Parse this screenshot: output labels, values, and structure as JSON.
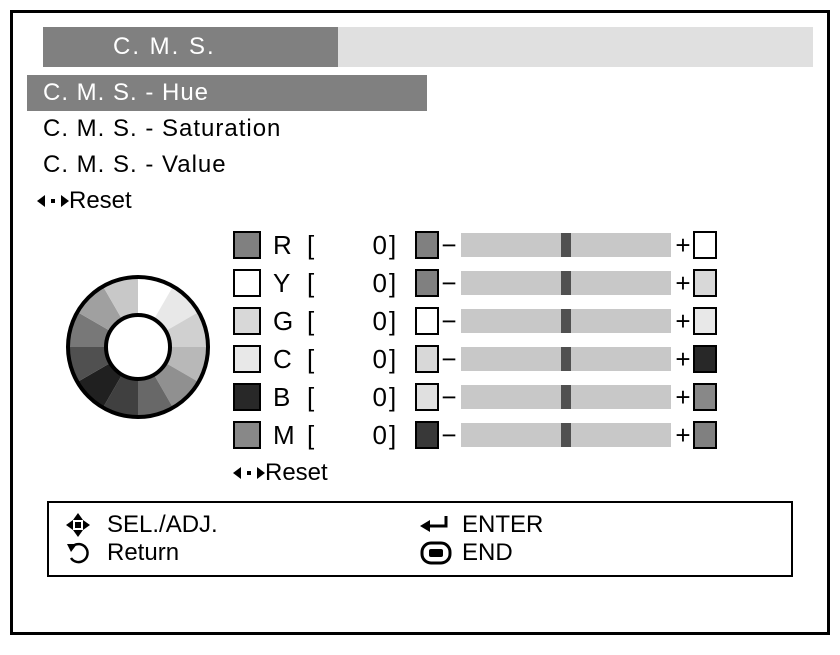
{
  "header": {
    "title": "C. M. S."
  },
  "menu": {
    "items": [
      {
        "label": "C. M. S. - Hue",
        "selected": true
      },
      {
        "label": "C. M. S. - Saturation",
        "selected": false
      },
      {
        "label": "C. M. S. - Value",
        "selected": false
      }
    ],
    "reset_label": "Reset"
  },
  "wheel": {
    "segments": [
      "#ffffff",
      "#e8e8e8",
      "#d0d0d0",
      "#b8b8b8",
      "#909090",
      "#686868",
      "#404040",
      "#202020",
      "#505050",
      "#787878",
      "#a0a0a0",
      "#c8c8c8"
    ],
    "outer_radius": 70,
    "inner_radius": 32,
    "stroke": "#000"
  },
  "rows": [
    {
      "label": "R",
      "value": "0",
      "swatch": "#808080",
      "minus_swatch": "#808080",
      "plus_swatch": "#ffffff",
      "pos": 0.5
    },
    {
      "label": "Y",
      "value": "0",
      "swatch": "#ffffff",
      "minus_swatch": "#808080",
      "plus_swatch": "#d8d8d8",
      "pos": 0.5
    },
    {
      "label": "G",
      "value": "0",
      "swatch": "#d8d8d8",
      "minus_swatch": "#ffffff",
      "plus_swatch": "#e8e8e8",
      "pos": 0.5
    },
    {
      "label": "C",
      "value": "0",
      "swatch": "#e8e8e8",
      "minus_swatch": "#d8d8d8",
      "plus_swatch": "#282828",
      "pos": 0.5
    },
    {
      "label": "B",
      "value": "0",
      "swatch": "#282828",
      "minus_swatch": "#e0e0e0",
      "plus_swatch": "#888888",
      "pos": 0.5
    },
    {
      "label": "M",
      "value": "0",
      "swatch": "#888888",
      "minus_swatch": "#383838",
      "plus_swatch": "#808080",
      "pos": 0.5
    }
  ],
  "rows_reset_label": "Reset",
  "footer": {
    "sel_adj": "SEL./ADJ.",
    "enter": "ENTER",
    "return": "Return",
    "end": "END"
  },
  "colors": {
    "header_dark": "#808080",
    "header_light": "#e0e0e0",
    "track": "#c8c8c8",
    "thumb": "#505050"
  }
}
